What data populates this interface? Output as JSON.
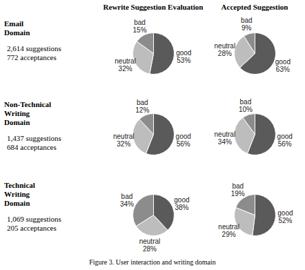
{
  "columns": [
    "Rewrite Suggestion Evaluation",
    "Accepted Suggestion"
  ],
  "rows": [
    {
      "label": [
        "Email",
        "Domain"
      ],
      "counts": [
        "2,614 suggestions",
        "772 acceptances"
      ]
    },
    {
      "label": [
        "Non-Technical",
        "Writing",
        "Domain"
      ],
      "counts": [
        "1,437 suggestions",
        "684 acceptances"
      ]
    },
    {
      "label": [
        "Technical",
        "Writing",
        "Domain"
      ],
      "counts": [
        "1,069 suggestions",
        "205 acceptances"
      ]
    }
  ],
  "caption": "Figure 3. User interaction and writing domain",
  "chart_data": [
    {
      "type": "pie",
      "categories": [
        "good",
        "neutral",
        "bad"
      ],
      "values": [
        53,
        32,
        15
      ],
      "value_labels": [
        "53%",
        "32%",
        "15%"
      ],
      "colors": [
        "#5a5a5a",
        "#bdbdbd",
        "#8c8c8c"
      ],
      "data_labels": true
    },
    {
      "type": "pie",
      "categories": [
        "good",
        "neutral",
        "bad"
      ],
      "values": [
        63,
        28,
        9
      ],
      "value_labels": [
        "63%",
        "28%",
        "9%"
      ],
      "colors": [
        "#5a5a5a",
        "#bdbdbd",
        "#8c8c8c"
      ],
      "data_labels": true
    },
    {
      "type": "pie",
      "categories": [
        "good",
        "neutral",
        "bad"
      ],
      "values": [
        56,
        32,
        12
      ],
      "value_labels": [
        "56%",
        "32%",
        "12%"
      ],
      "colors": [
        "#5a5a5a",
        "#bdbdbd",
        "#8c8c8c"
      ],
      "data_labels": true
    },
    {
      "type": "pie",
      "categories": [
        "good",
        "neutral",
        "bad"
      ],
      "values": [
        56,
        34,
        10
      ],
      "value_labels": [
        "56%",
        "34%",
        "10%"
      ],
      "colors": [
        "#5a5a5a",
        "#bdbdbd",
        "#8c8c8c"
      ],
      "data_labels": true
    },
    {
      "type": "pie",
      "categories": [
        "good",
        "neutral",
        "bad"
      ],
      "values": [
        38,
        28,
        34
      ],
      "value_labels": [
        "38%",
        "28%",
        "34%"
      ],
      "colors": [
        "#5a5a5a",
        "#bdbdbd",
        "#8c8c8c"
      ],
      "data_labels": true
    },
    {
      "type": "pie",
      "categories": [
        "good",
        "neutral",
        "bad"
      ],
      "values": [
        52,
        29,
        19
      ],
      "value_labels": [
        "52%",
        "29%",
        "19%"
      ],
      "colors": [
        "#5a5a5a",
        "#bdbdbd",
        "#8c8c8c"
      ],
      "data_labels": true
    }
  ]
}
